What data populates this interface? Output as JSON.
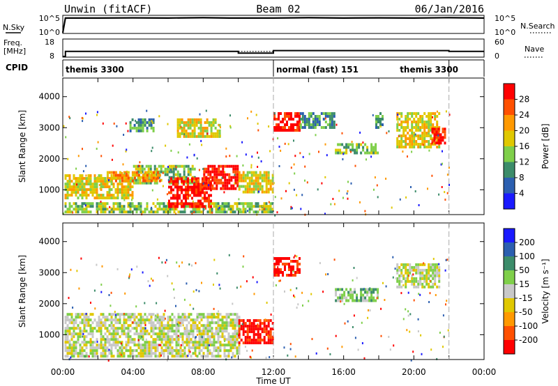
{
  "chart_data": [
    {
      "type": "line",
      "panel": "noise",
      "title_left": "Unwin (fitACF)",
      "title_center": "Beam 02",
      "title_right": "06/Jan/2016",
      "left_label": "N.Sky",
      "right_label": "N.Search",
      "left_ticks": [
        "10^5",
        "10^0"
      ],
      "right_ticks": [
        "10^5",
        "10^0"
      ],
      "x_hours": [
        0,
        0.15,
        0.25,
        2,
        4,
        6,
        8,
        9.5,
        12,
        14,
        16,
        18,
        20,
        22,
        24
      ],
      "series": [
        {
          "values": [
            0,
            4.6,
            4.6,
            4.6,
            4.65,
            4.6,
            4.7,
            4.6,
            4.6,
            4.7,
            4.6,
            4.65,
            4.6,
            4.7,
            4.6
          ]
        }
      ],
      "ylim": [
        0,
        5
      ]
    },
    {
      "type": "line",
      "panel": "freq",
      "left_label_1": "Freq.",
      "left_label_2": "[MHz]",
      "right_label": "Nave",
      "left_ticks": [
        "18",
        "8"
      ],
      "right_ticks": [
        "60",
        "0"
      ],
      "ylim": [
        8,
        18
      ],
      "freq_series": [
        {
          "x_hours": [
            0,
            0.15,
            0.25,
            10,
            12,
            22,
            24
          ],
          "values": [
            8,
            11,
            11,
            10,
            11.5,
            11,
            11
          ]
        }
      ],
      "nave_series": [
        {
          "x_hours": [
            10,
            12
          ],
          "values": [
            11,
            11
          ]
        }
      ]
    },
    {
      "type": "table",
      "panel": "cpid",
      "label": "CPID",
      "segments": [
        {
          "start_hours": 0,
          "end_hours": 12,
          "text": "themis 3300"
        },
        {
          "start_hours": 12,
          "end_hours": 22,
          "text": "normal (fast) 151"
        },
        {
          "start_hours": 22,
          "end_hours": 24,
          "text": ""
        }
      ],
      "extra_label": {
        "hours": 19.2,
        "text": "themis 3300"
      }
    },
    {
      "type": "heatmap",
      "panel": "power",
      "ylabel": "Slant Range [km]",
      "y_ticks": [
        1000,
        2000,
        3000,
        4000
      ],
      "ylim": [
        200,
        4600
      ],
      "xlim": [
        0,
        24
      ],
      "colorbar_label": "Power [dB]",
      "colorbar_ticks": [
        4,
        8,
        12,
        16,
        20,
        24,
        28
      ],
      "colorbar_colors": [
        "#1a1aff",
        "#2c5fb0",
        "#3c8c6a",
        "#7fcf4a",
        "#e0c800",
        "#ff9900",
        "#ff5000",
        "#ff0000"
      ],
      "regions": [
        {
          "x": [
            0.1,
            12
          ],
          "y": [
            300,
            600
          ],
          "level": 3
        },
        {
          "x": [
            0.1,
            4
          ],
          "y": [
            700,
            1500
          ],
          "level": 4
        },
        {
          "x": [
            4,
            7.5
          ],
          "y": [
            1200,
            1800
          ],
          "level": 3
        },
        {
          "x": [
            2.5,
            5.5
          ],
          "y": [
            1300,
            1600
          ],
          "level": 5
        },
        {
          "x": [
            6,
            8.5
          ],
          "y": [
            500,
            1400
          ],
          "level": 7
        },
        {
          "x": [
            8,
            10
          ],
          "y": [
            1000,
            1800
          ],
          "level": 7
        },
        {
          "x": [
            10,
            12
          ],
          "y": [
            900,
            1600
          ],
          "level": 4
        },
        {
          "x": [
            3.8,
            5.2
          ],
          "y": [
            2900,
            3300
          ],
          "level": 2
        },
        {
          "x": [
            6.5,
            9
          ],
          "y": [
            2700,
            3300
          ],
          "level": 4
        },
        {
          "x": [
            12,
            13.5
          ],
          "y": [
            2900,
            3500
          ],
          "level": 7
        },
        {
          "x": [
            13.5,
            15.5
          ],
          "y": [
            3000,
            3500
          ],
          "level": 2
        },
        {
          "x": [
            15.5,
            18
          ],
          "y": [
            2200,
            2500
          ],
          "level": 3
        },
        {
          "x": [
            17.8,
            18.2
          ],
          "y": [
            3000,
            3500
          ],
          "level": 2
        },
        {
          "x": [
            19,
            21.5
          ],
          "y": [
            2400,
            3500
          ],
          "level": 4
        },
        {
          "x": [
            21,
            21.8
          ],
          "y": [
            2500,
            3000
          ],
          "level": 7
        }
      ]
    },
    {
      "type": "heatmap",
      "panel": "velocity",
      "ylabel": "Slant Range [km]",
      "xlabel": "Time UT",
      "x_ticks": [
        "00:00",
        "04:00",
        "08:00",
        "12:00",
        "16:00",
        "20:00",
        "00:00"
      ],
      "y_ticks": [
        1000,
        2000,
        3000,
        4000
      ],
      "ylim": [
        200,
        4600
      ],
      "xlim": [
        0,
        24
      ],
      "colorbar_label": "Velocity [m s⁻¹]",
      "colorbar_ticks": [
        200,
        100,
        50,
        15,
        -15,
        -50,
        -100,
        -200
      ],
      "colorbar_colors": [
        "#1a1aff",
        "#2c5fb0",
        "#3c8c6a",
        "#7fcf4a",
        "#c8c8c8",
        "#e0c800",
        "#ff9900",
        "#ff5000",
        "#ff0000"
      ],
      "regions": [
        {
          "x": [
            0.1,
            10
          ],
          "y": [
            300,
            1700
          ],
          "level": 4
        },
        {
          "x": [
            10,
            12
          ],
          "y": [
            700,
            1500
          ],
          "level": 8
        },
        {
          "x": [
            12,
            13.5
          ],
          "y": [
            2900,
            3500
          ],
          "level": 8
        },
        {
          "x": [
            15.5,
            18
          ],
          "y": [
            2100,
            2500
          ],
          "level": 3
        },
        {
          "x": [
            19,
            21.5
          ],
          "y": [
            2500,
            3300
          ],
          "level": 4
        }
      ]
    }
  ]
}
